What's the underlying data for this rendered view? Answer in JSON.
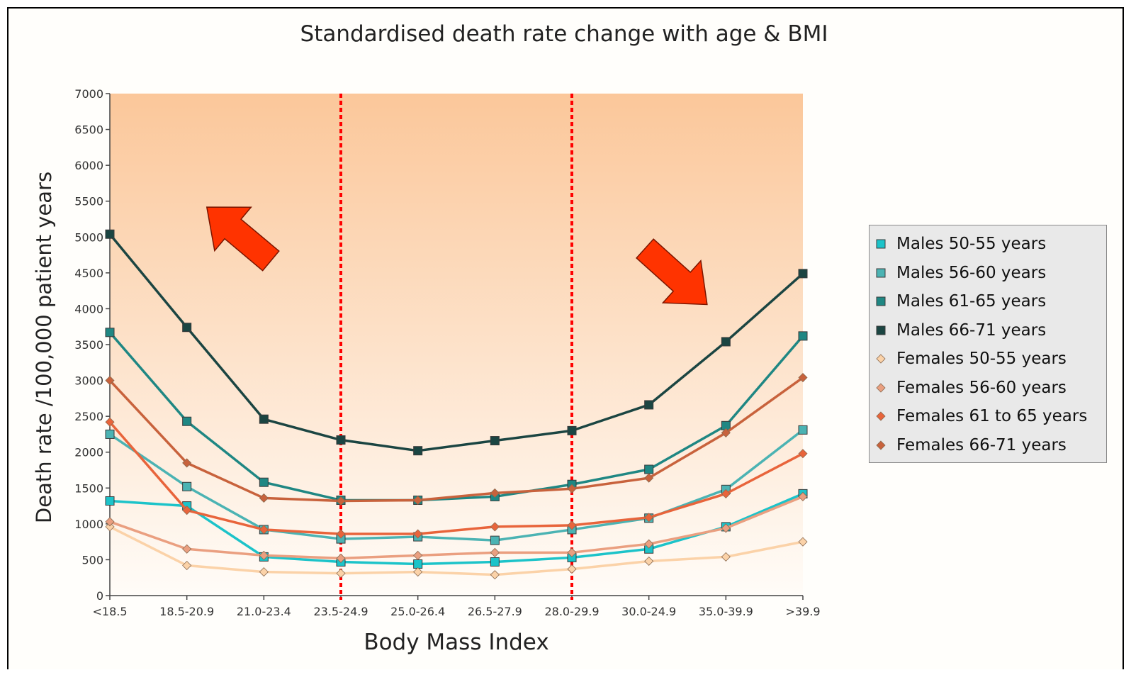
{
  "chart_data": {
    "type": "line",
    "title": "Standardised death rate change with age & BMI",
    "xlabel": "Body Mass Index",
    "ylabel": "Death rate /100,000 patient years",
    "categories": [
      "<18.5",
      "18.5-20.9",
      "21.0-23.4",
      "23.5-24.9",
      "25.0-26.4",
      "26.5-27.9",
      "28.0-29.9",
      "30.0-24.9",
      "35.0-39.9",
      ">39.9"
    ],
    "ylim": [
      0,
      7000
    ],
    "yticks": [
      "0",
      "500",
      "1000",
      "1500",
      "2000",
      "2500",
      "3000",
      "3500",
      "4000",
      "4500",
      "5000",
      "5500",
      "6000",
      "6500",
      "7000"
    ],
    "grid": false,
    "legend_position": "right",
    "vertical_reference_lines_at": [
      "23.5-24.9",
      "28.0-29.9"
    ],
    "reference_line_color": "#ff0000",
    "background_gradient": [
      "#fbc79a",
      "#fffcf8"
    ],
    "series": [
      {
        "name": "Males 50-55 years",
        "marker": "square",
        "color": "#1cc3c9",
        "values": [
          1320,
          1250,
          540,
          470,
          440,
          470,
          530,
          650,
          960,
          1420
        ]
      },
      {
        "name": "Males 56-60 years",
        "marker": "square",
        "color": "#4bb3b3",
        "values": [
          2250,
          1520,
          920,
          790,
          820,
          770,
          920,
          1080,
          1480,
          2310
        ]
      },
      {
        "name": "Males 61-65 years",
        "marker": "square",
        "color": "#1f8783",
        "values": [
          3670,
          2430,
          1580,
          1330,
          1330,
          1380,
          1550,
          1760,
          2370,
          3620
        ]
      },
      {
        "name": "Males 66-71 years",
        "marker": "square",
        "color": "#1b4542",
        "values": [
          5040,
          3740,
          2460,
          2170,
          2020,
          2160,
          2300,
          2660,
          3540,
          4490
        ]
      },
      {
        "name": "Females 50-55 years",
        "marker": "diamond",
        "color": "#fbd2a8",
        "values": [
          960,
          420,
          330,
          310,
          330,
          290,
          370,
          480,
          540,
          750
        ]
      },
      {
        "name": "Females 56-60 years",
        "marker": "diamond",
        "color": "#ea9f80",
        "values": [
          1030,
          650,
          560,
          520,
          560,
          600,
          600,
          720,
          940,
          1380
        ]
      },
      {
        "name": "Females 61 to 65 years",
        "marker": "diamond",
        "color": "#e8643b",
        "values": [
          2420,
          1190,
          920,
          860,
          860,
          960,
          980,
          1090,
          1420,
          1980
        ]
      },
      {
        "name": "Females 66-71 years",
        "marker": "diamond",
        "color": "#c8623c",
        "values": [
          3000,
          1850,
          1360,
          1320,
          1330,
          1430,
          1490,
          1640,
          2270,
          3040
        ]
      }
    ]
  },
  "annotations": {
    "arrow_color": "#ff3300",
    "arrows": [
      {
        "name": "arrow-left-up",
        "direction": "up-left"
      },
      {
        "name": "arrow-right-down",
        "direction": "down-right"
      }
    ]
  }
}
